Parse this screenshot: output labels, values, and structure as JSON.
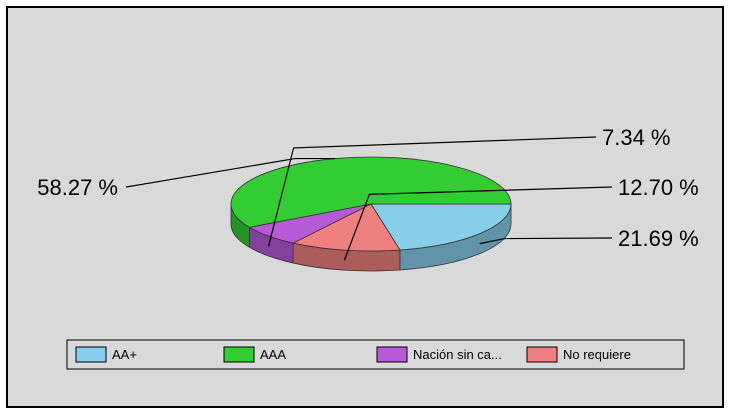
{
  "chart_data": {
    "type": "pie",
    "style": "3d",
    "slices": [
      {
        "label": "AA+",
        "value": 21.69,
        "value_label": "21.69 %",
        "color": "#87ceeb"
      },
      {
        "label": "No requiere",
        "value": 12.7,
        "value_label": "12.70 %",
        "color": "#f08080"
      },
      {
        "label": "Nación sin ca...",
        "value": 7.34,
        "value_label": "7.34 %",
        "color": "#b65ad8"
      },
      {
        "label": "AAA",
        "value": 58.27,
        "value_label": "58.27 %",
        "color": "#33cc33"
      }
    ],
    "legend": {
      "placement": "bottom",
      "items": [
        "AA+",
        "AAA",
        "Nación sin ca...",
        "No requiere"
      ],
      "colors": [
        "#87ceeb",
        "#33cc33",
        "#b65ad8",
        "#f08080"
      ]
    },
    "background": "#d9d9d9"
  }
}
